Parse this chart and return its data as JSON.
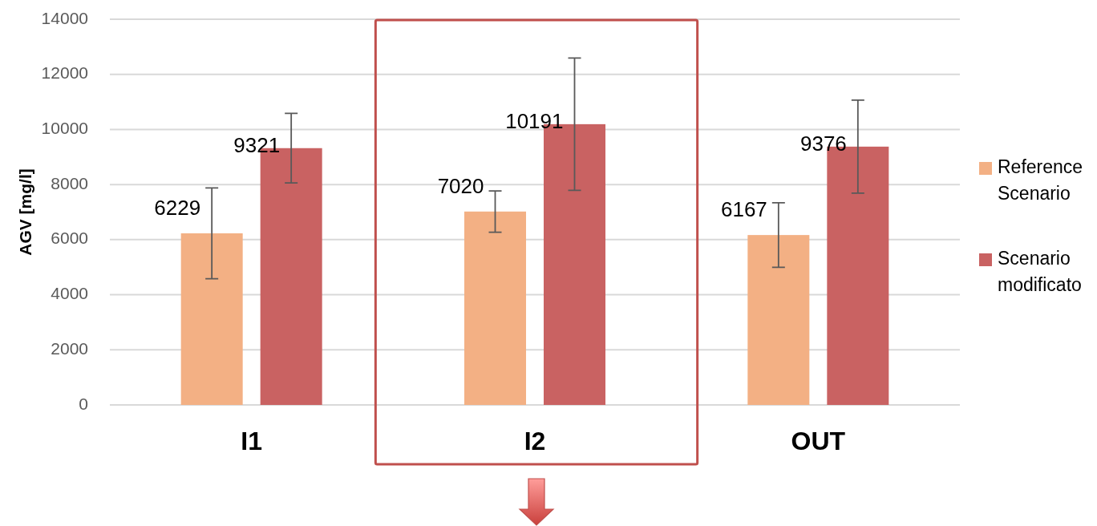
{
  "chart_data": {
    "type": "bar",
    "ylabel": "AGV [mg/l]",
    "categories": [
      "I1",
      "I2",
      "OUT"
    ],
    "series": [
      {
        "name": "Reference Scenario",
        "color": "#f3b084",
        "values": [
          6229,
          7020,
          6167
        ],
        "errors": [
          1650,
          750,
          1170
        ]
      },
      {
        "name": "Scenario modificato",
        "color": "#c96262",
        "values": [
          9321,
          10191,
          9376
        ],
        "errors": [
          1260,
          2400,
          1690
        ]
      }
    ],
    "ylim": [
      0,
      14000
    ],
    "yticks": [
      0,
      2000,
      4000,
      6000,
      8000,
      10000,
      12000,
      14000
    ],
    "grid": "y",
    "legend": "right",
    "data_labels": true
  }
}
